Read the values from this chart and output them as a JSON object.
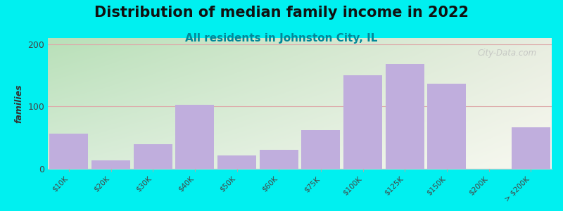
{
  "title": "Distribution of median family income in 2022",
  "subtitle": "All residents in Johnston City, IL",
  "ylabel": "families",
  "categories": [
    "$10K",
    "$20K",
    "$30K",
    "$40K",
    "$50K",
    "$60K",
    "$75K",
    "$100K",
    "$125K",
    "$150K",
    "$200K",
    "> $200K"
  ],
  "values": [
    57,
    13,
    40,
    103,
    22,
    30,
    62,
    150,
    168,
    137,
    0,
    67
  ],
  "bar_color": "#c0aedd",
  "background_outer": "#00f0f0",
  "ylim": [
    0,
    210
  ],
  "yticks": [
    0,
    100,
    200
  ],
  "title_fontsize": 15,
  "subtitle_fontsize": 11,
  "watermark": "City-Data.com",
  "grid_color": "#ddaaaa",
  "gradient_colors": [
    "#c8e8c8",
    "#ffffff"
  ],
  "gradient_right_color": "#f0f0e8"
}
